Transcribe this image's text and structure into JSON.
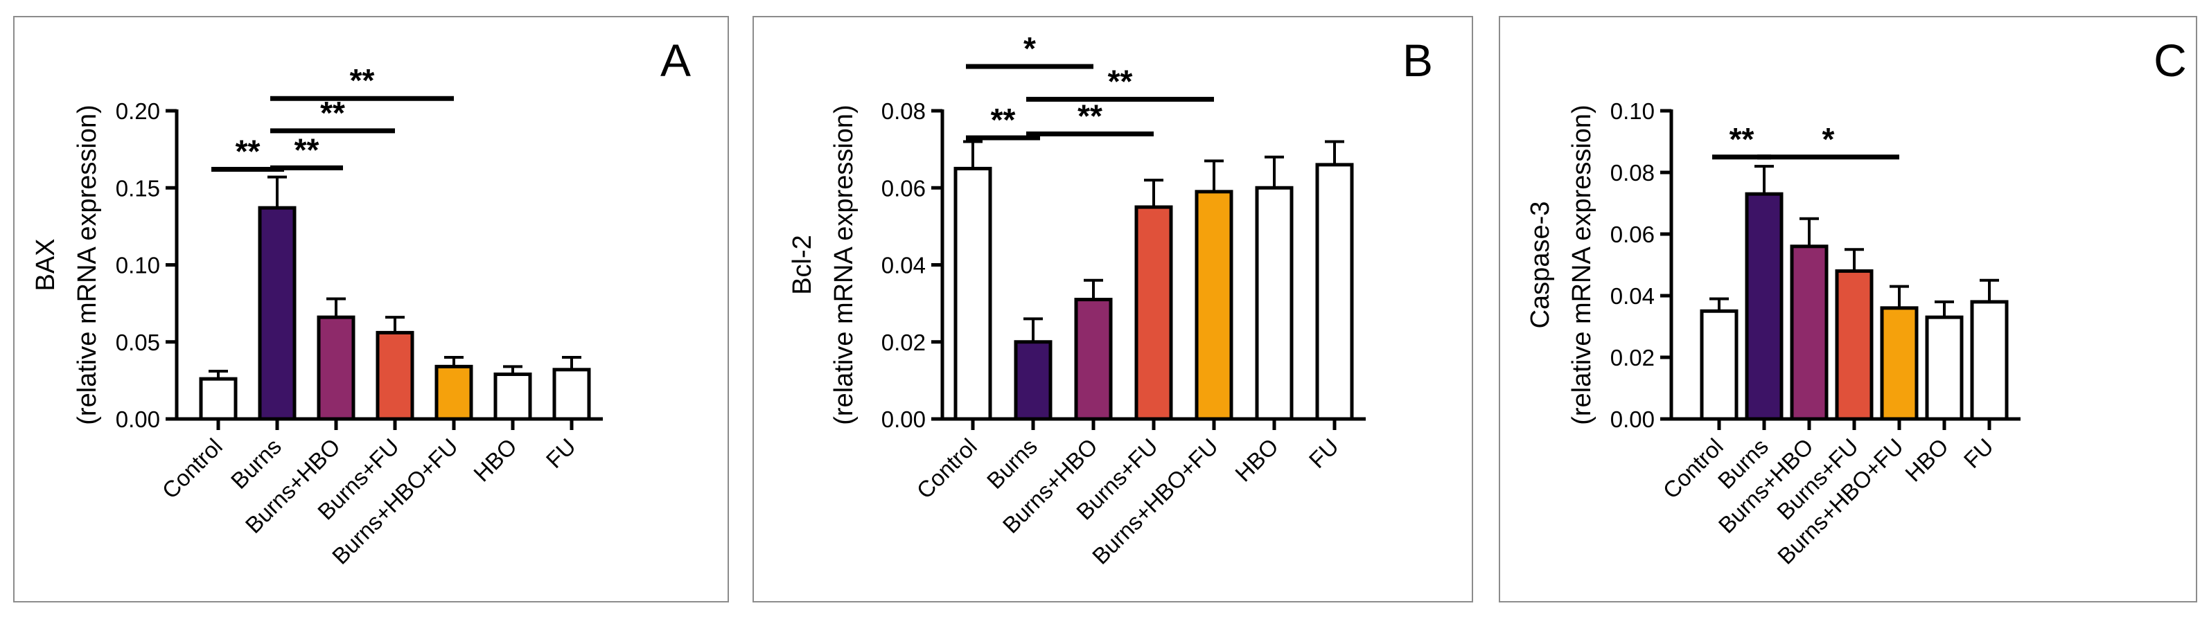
{
  "chart_data": [
    {
      "type": "bar",
      "panel_letter": "A",
      "ylabel_lines": [
        "BAX",
        "(relative mRNA expression)"
      ],
      "categories": [
        "Control",
        "Burns",
        "Burns+HBO",
        "Burns+FU",
        "Burns+HBO+FU",
        "HBO",
        "FU"
      ],
      "values": [
        0.026,
        0.137,
        0.066,
        0.056,
        0.034,
        0.029,
        0.032
      ],
      "errors": [
        0.005,
        0.02,
        0.012,
        0.01,
        0.006,
        0.005,
        0.008
      ],
      "colors": [
        "#ffffff",
        "#3d1366",
        "#8e2a6a",
        "#e0513a",
        "#f5a10c",
        "#ffffff",
        "#ffffff"
      ],
      "ylim": [
        0,
        0.2
      ],
      "yticks": [
        "0.00",
        "0.05",
        "0.10",
        "0.15",
        "0.20"
      ],
      "significance": [
        {
          "from": 0,
          "to": 1,
          "y": 0.162,
          "label": "**"
        },
        {
          "from": 1,
          "to": 2,
          "y": 0.163,
          "label": "**"
        },
        {
          "from": 1,
          "to": 3,
          "y": 0.187,
          "label": "**"
        },
        {
          "from": 1,
          "to": 4,
          "y": 0.208,
          "label": "**"
        }
      ]
    },
    {
      "type": "bar",
      "panel_letter": "B",
      "ylabel_lines": [
        "Bcl-2",
        "(relative mRNA expression)"
      ],
      "categories": [
        "Control",
        "Burns",
        "Burns+HBO",
        "Burns+FU",
        "Burns+HBO+FU",
        "HBO",
        "FU"
      ],
      "values": [
        0.065,
        0.02,
        0.031,
        0.055,
        0.059,
        0.06,
        0.066
      ],
      "errors": [
        0.007,
        0.006,
        0.005,
        0.007,
        0.008,
        0.008,
        0.006
      ],
      "colors": [
        "#ffffff",
        "#3d1366",
        "#8e2a6a",
        "#e0513a",
        "#f5a10c",
        "#ffffff",
        "#ffffff"
      ],
      "ylim": [
        0,
        0.08
      ],
      "yticks": [
        "0.00",
        "0.02",
        "0.04",
        "0.06",
        "0.08"
      ],
      "significance": [
        {
          "from": 0,
          "to": 1,
          "y": 0.073,
          "label": "**"
        },
        {
          "from": 1,
          "to": 3,
          "y": 0.074,
          "label": "**"
        },
        {
          "from": 1,
          "to": 4,
          "y": 0.083,
          "label": "**"
        },
        {
          "from": 0,
          "to": 2,
          "y": 0.0915,
          "label": "*"
        }
      ]
    },
    {
      "type": "bar",
      "panel_letter": "C",
      "ylabel_lines": [
        "Caspase-3",
        "(relative mRNA expression)"
      ],
      "categories": [
        "Control",
        "Burns",
        "Burns+HBO",
        "Burns+FU",
        "Burns+HBO+FU",
        "HBO",
        "FU"
      ],
      "values": [
        0.035,
        0.073,
        0.056,
        0.048,
        0.036,
        0.033,
        0.038
      ],
      "errors": [
        0.004,
        0.009,
        0.009,
        0.007,
        0.007,
        0.005,
        0.007
      ],
      "colors": [
        "#ffffff",
        "#3d1366",
        "#8e2a6a",
        "#e0513a",
        "#f5a10c",
        "#ffffff",
        "#ffffff"
      ],
      "ylim": [
        0,
        0.1
      ],
      "yticks": [
        "0.00",
        "0.02",
        "0.04",
        "0.06",
        "0.08",
        "0.10"
      ],
      "significance": [
        {
          "from": 0,
          "to": 1,
          "y": 0.085,
          "label": "**"
        },
        {
          "from": 1,
          "to": 4,
          "y": 0.085,
          "label": "*"
        }
      ]
    }
  ]
}
